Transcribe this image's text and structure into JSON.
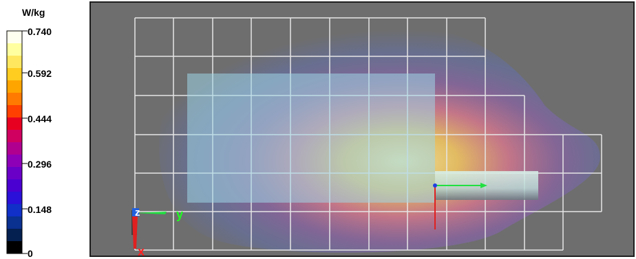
{
  "legend": {
    "unit": "W/kg",
    "ticks": [
      "0.740",
      "0.592",
      "0.444",
      "0.296",
      "0.148",
      "0"
    ],
    "colors": [
      "#fffff0",
      "#ffffa0",
      "#ffe860",
      "#ffcc20",
      "#ffa500",
      "#ff7a00",
      "#ff4000",
      "#e80020",
      "#d00060",
      "#b00090",
      "#8e00b8",
      "#6a00c8",
      "#4a00d0",
      "#2a10d8",
      "#1030c8",
      "#0a3090",
      "#042050",
      "#000000"
    ]
  },
  "viewport": {
    "axes": {
      "x": "x",
      "y": "y",
      "z": "z"
    },
    "colors": {
      "background": "#6e6e6e",
      "grid": "#e6e6e6",
      "phantom": "#9fd6e6",
      "probe": "#c0dcd8"
    }
  }
}
